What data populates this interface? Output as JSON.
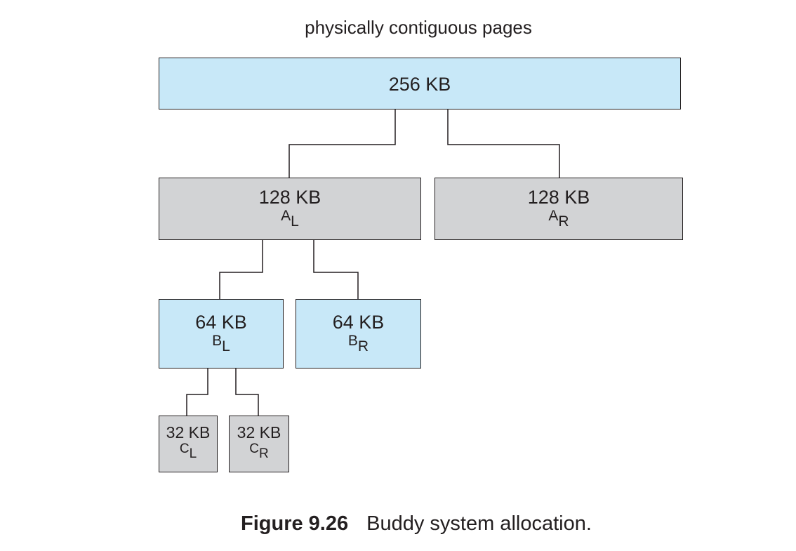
{
  "diagram": {
    "top_label": "physically contiguous pages",
    "root": {
      "size": "256 KB"
    },
    "a_left": {
      "size": "128 KB",
      "name_letter": "A",
      "name_sub": "L"
    },
    "a_right": {
      "size": "128 KB",
      "name_letter": "A",
      "name_sub": "R"
    },
    "b_left": {
      "size": "64 KB",
      "name_letter": "B",
      "name_sub": "L"
    },
    "b_right": {
      "size": "64 KB",
      "name_letter": "B",
      "name_sub": "R"
    },
    "c_left": {
      "size": "32 KB",
      "name_letter": "C",
      "name_sub": "L"
    },
    "c_right": {
      "size": "32 KB",
      "name_letter": "C",
      "name_sub": "R"
    },
    "colors": {
      "blue_fill": "#c8e8f8",
      "gray_fill": "#d2d3d5",
      "stroke": "#231f20"
    }
  },
  "caption": {
    "figure_number": "Figure 9.26",
    "text": "Buddy system allocation."
  }
}
